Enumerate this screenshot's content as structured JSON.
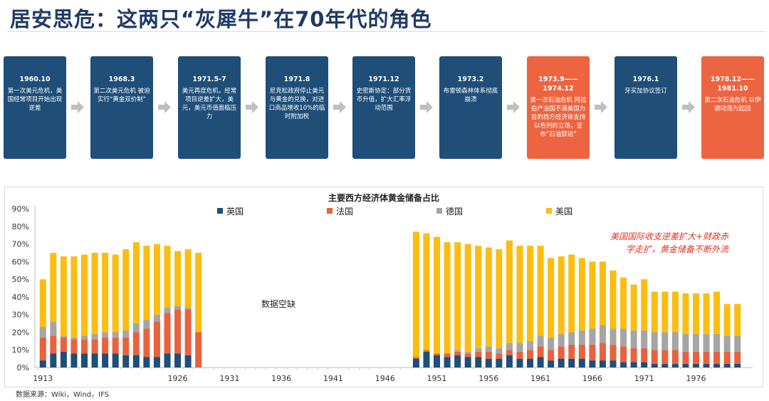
{
  "header": {
    "title": "居安思危：这两只“灰犀牛”在70年代的角色"
  },
  "timeline": [
    {
      "date": "1960.10",
      "desc": "第一次美元危机，美国经常项目开始出现逆差",
      "color": "navy"
    },
    {
      "date": "1968.3",
      "desc": "第二次美元危机 被迫实行“黄金双价制”",
      "color": "navy"
    },
    {
      "date": "1971.5-7",
      "desc": "美元再度危机，经常项目逆差扩大，美元，美元币值面临压力",
      "color": "navy"
    },
    {
      "date": "1971.8",
      "desc": "尼克松政府停止美元与黄金的兑换，对进口商品增收10%的临时附加税",
      "color": "navy"
    },
    {
      "date": "1971.12",
      "desc": "史密斯协定：部分货币升值，扩大汇率浮动范围",
      "color": "navy"
    },
    {
      "date": "1973.2",
      "desc": "布雷顿森林体系彻底崩溃",
      "color": "navy"
    },
    {
      "date": "1973.9——1974.12",
      "desc": "第一次石油危机 阿拉伯产油国不满美国为首的西方经济体支持以色列的立场，宣布“石油禁运”",
      "color": "red"
    },
    {
      "date": "1976.1",
      "desc": "牙买加协议签订",
      "color": "navy"
    },
    {
      "date": "1978.12——1981.10",
      "desc": "第二次石油危机 以伊朗动荡为起因",
      "color": "red"
    }
  ],
  "chart_data": {
    "type": "bar",
    "stacked": true,
    "title": "主要西方经济体黄金储备占比",
    "ylim": [
      0,
      90
    ],
    "yticks": [
      "0%",
      "10%",
      "20%",
      "30%",
      "40%",
      "50%",
      "60%",
      "70%",
      "80%",
      "90%"
    ],
    "xticks": [
      "1913",
      "1926",
      "1931",
      "1936",
      "1941",
      "1946",
      "1951",
      "1956",
      "1961",
      "1966",
      "1971",
      "1976"
    ],
    "legend": {
      "position": "top",
      "entries": [
        "英国",
        "法国",
        "德国",
        "美国"
      ]
    },
    "colors": {
      "英国": "#1f4e79",
      "法国": "#e8623f",
      "德国": "#a5a5a5",
      "美国": "#fbbd12"
    },
    "annotation_gap": "数据空缺",
    "annotation_note": "美国国际收支逆差扩大+财政赤字走扩，黄金储备不断外流",
    "categories": [
      1913,
      1914,
      1915,
      1916,
      1917,
      1918,
      1919,
      1920,
      1921,
      1922,
      1923,
      1924,
      1925,
      1926,
      1927,
      1928,
      1929,
      1930,
      1931,
      1932,
      1933,
      1934,
      1935,
      1936,
      1937,
      1938,
      1939,
      1940,
      1941,
      1942,
      1943,
      1944,
      1945,
      1946,
      1947,
      1948,
      1949,
      1950,
      1951,
      1952,
      1953,
      1954,
      1955,
      1956,
      1957,
      1958,
      1959,
      1960,
      1961,
      1962,
      1963,
      1964,
      1965,
      1966,
      1967,
      1968,
      1969,
      1970,
      1971,
      1972,
      1973,
      1974,
      1975,
      1976,
      1977,
      1978,
      1979,
      1980
    ],
    "series": [
      {
        "name": "英国",
        "values": [
          4,
          8,
          9,
          8,
          8,
          8,
          8,
          8,
          7,
          7,
          6,
          6,
          8,
          8,
          7,
          null,
          null,
          null,
          null,
          null,
          null,
          null,
          null,
          null,
          null,
          null,
          null,
          null,
          null,
          null,
          null,
          null,
          null,
          null,
          null,
          null,
          5,
          9,
          7,
          6,
          7,
          6,
          6,
          5,
          5,
          7,
          5,
          5,
          6,
          4,
          5,
          5,
          5,
          4,
          4,
          4,
          3,
          3,
          3,
          2,
          2,
          2,
          2,
          2,
          2,
          2,
          2,
          2
        ]
      },
      {
        "name": "法国",
        "values": [
          13,
          10,
          8,
          8,
          8,
          8,
          9,
          9,
          10,
          13,
          16,
          20,
          23,
          25,
          26,
          20,
          null,
          null,
          null,
          null,
          null,
          null,
          null,
          null,
          null,
          null,
          null,
          null,
          null,
          null,
          null,
          null,
          null,
          null,
          null,
          null,
          1,
          1,
          1,
          2,
          2,
          2,
          3,
          4,
          3,
          3,
          4,
          5,
          6,
          6,
          7,
          8,
          8,
          9,
          10,
          9,
          9,
          8,
          8,
          8,
          8,
          8,
          7,
          7,
          7,
          7,
          7,
          7
        ]
      },
      {
        "name": "德国",
        "values": [
          6,
          8,
          1,
          1,
          2,
          3,
          3,
          3,
          4,
          5,
          5,
          4,
          3,
          2,
          1,
          0,
          null,
          null,
          null,
          null,
          null,
          null,
          null,
          null,
          null,
          null,
          null,
          null,
          null,
          null,
          null,
          null,
          null,
          null,
          null,
          null,
          0,
          0,
          0,
          0,
          1,
          1,
          2,
          3,
          3,
          4,
          5,
          5,
          6,
          7,
          7,
          7,
          8,
          9,
          10,
          9,
          10,
          10,
          10,
          10,
          10,
          10,
          10,
          10,
          10,
          10,
          9,
          9
        ]
      },
      {
        "name": "美国",
        "values": [
          27,
          39,
          45,
          46,
          46,
          46,
          45,
          44,
          46,
          46,
          42,
          40,
          35,
          31,
          33,
          45,
          null,
          null,
          null,
          null,
          null,
          null,
          null,
          null,
          null,
          null,
          null,
          null,
          null,
          null,
          null,
          null,
          null,
          null,
          null,
          null,
          71,
          66,
          66,
          63,
          61,
          61,
          58,
          56,
          56,
          58,
          55,
          54,
          51,
          45,
          44,
          44,
          41,
          38,
          36,
          33,
          29,
          26,
          29,
          23,
          23,
          23,
          23,
          23,
          23,
          24,
          18,
          18
        ]
      }
    ]
  },
  "footer": {
    "source": "数据来源：Wiki，Wind，IFS"
  }
}
